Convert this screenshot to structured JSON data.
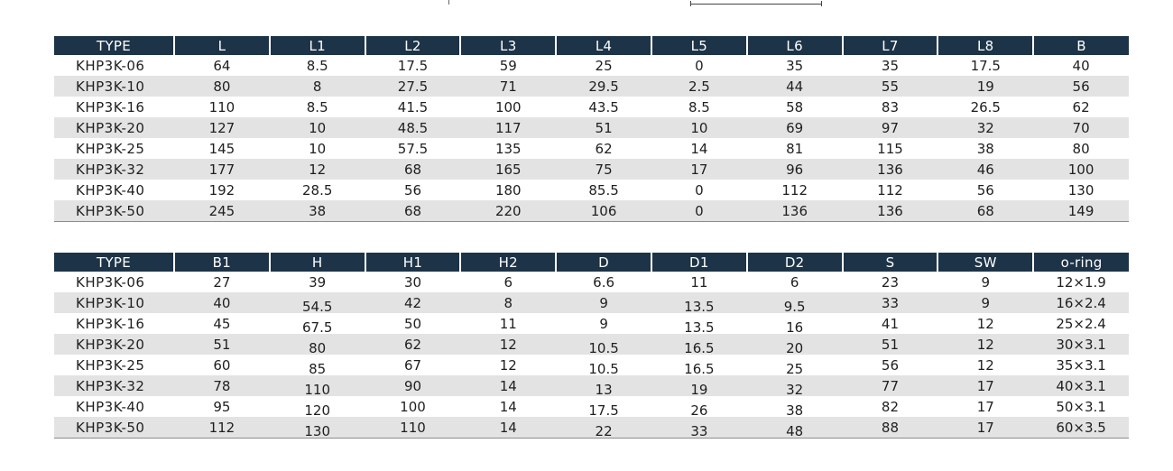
{
  "table1": {
    "headers": [
      "TYPE",
      "L",
      "L1",
      "L2",
      "L3",
      "L4",
      "L5",
      "L6",
      "L7",
      "L8",
      "B"
    ],
    "rows": [
      [
        "KHP3K-06",
        "64",
        "8.5",
        "17.5",
        "59",
        "25",
        "0",
        "35",
        "35",
        "17.5",
        "40"
      ],
      [
        "KHP3K-10",
        "80",
        "8",
        "27.5",
        "71",
        "29.5",
        "2.5",
        "44",
        "55",
        "19",
        "56"
      ],
      [
        "KHP3K-16",
        "110",
        "8.5",
        "41.5",
        "100",
        "43.5",
        "8.5",
        "58",
        "83",
        "26.5",
        "62"
      ],
      [
        "KHP3K-20",
        "127",
        "10",
        "48.5",
        "117",
        "51",
        "10",
        "69",
        "97",
        "32",
        "70"
      ],
      [
        "KHP3K-25",
        "145",
        "10",
        "57.5",
        "135",
        "62",
        "14",
        "81",
        "115",
        "38",
        "80"
      ],
      [
        "KHP3K-32",
        "177",
        "12",
        "68",
        "165",
        "75",
        "17",
        "96",
        "136",
        "46",
        "100"
      ],
      [
        "KHP3K-40",
        "192",
        "28.5",
        "56",
        "180",
        "85.5",
        "0",
        "112",
        "112",
        "56",
        "130"
      ],
      [
        "KHP3K-50",
        "245",
        "38",
        "68",
        "220",
        "106",
        "0",
        "136",
        "136",
        "68",
        "149"
      ]
    ]
  },
  "table2": {
    "headers": [
      "TYPE",
      "B1",
      "H",
      "H1",
      "H2",
      "D",
      "D1",
      "D2",
      "S",
      "SW",
      "o-ring"
    ],
    "rows": [
      [
        "KHP3K-06",
        "27",
        "39",
        "30",
        "6",
        "6.6",
        "11",
        "6",
        "23",
        "9",
        "12×1.9"
      ],
      [
        "KHP3K-10",
        "40",
        "54.5",
        "42",
        "8",
        "9",
        "13.5",
        "9.5",
        "33",
        "9",
        "16×2.4"
      ],
      [
        "KHP3K-16",
        "45",
        "67.5",
        "50",
        "11",
        "9",
        "13.5",
        "16",
        "41",
        "12",
        "25×2.4"
      ],
      [
        "KHP3K-20",
        "51",
        "80",
        "62",
        "12",
        "10.5",
        "16.5",
        "20",
        "51",
        "12",
        "30×3.1"
      ],
      [
        "KHP3K-25",
        "60",
        "85",
        "67",
        "12",
        "10.5",
        "16.5",
        "25",
        "56",
        "12",
        "35×3.1"
      ],
      [
        "KHP3K-32",
        "78",
        "110",
        "90",
        "14",
        "13",
        "19",
        "32",
        "77",
        "17",
        "40×3.1"
      ],
      [
        "KHP3K-40",
        "95",
        "120",
        "100",
        "14",
        "17.5",
        "26",
        "38",
        "82",
        "17",
        "50×3.1"
      ],
      [
        "KHP3K-50",
        "112",
        "130",
        "110",
        "14",
        "22",
        "33",
        "48",
        "88",
        "17",
        "60×3.5"
      ]
    ]
  }
}
